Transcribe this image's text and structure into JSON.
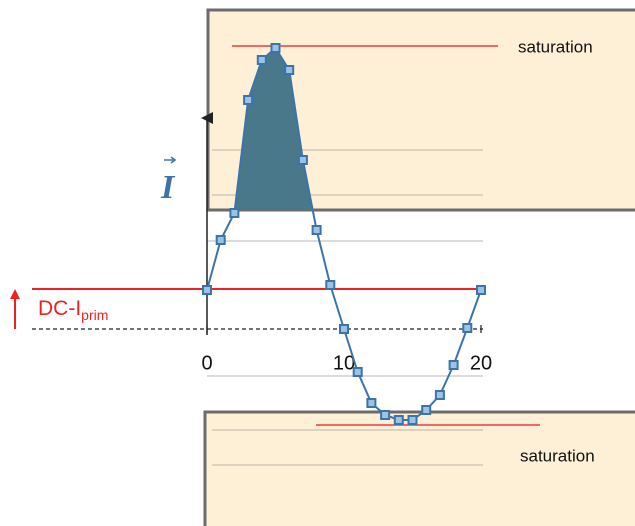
{
  "chart_data": {
    "type": "line",
    "y_label": "I",
    "x": [
      0,
      1,
      2,
      3,
      4,
      5,
      6,
      7,
      8,
      9,
      10,
      11,
      12,
      13,
      14,
      15,
      16,
      17,
      18,
      19,
      20
    ],
    "series": [
      {
        "color": "#3c74a8",
        "fill_color": "#48788a",
        "values": [
          3.9,
          8.9,
          11.6,
          22.9,
          26.9,
          28.1,
          25.9,
          16.9,
          9.9,
          4.4,
          0,
          -4.3,
          -7.4,
          -8.6,
          -9.1,
          -9.1,
          -8.1,
          -6.6,
          -3.6,
          0.1,
          3.9
        ]
      }
    ],
    "xlim": [
      0,
      20
    ],
    "xticks": [
      0,
      10,
      20
    ],
    "ylim": [
      -19.7,
      32.9
    ],
    "dc_level": {
      "label": "DC-I",
      "subscript": "prim",
      "value": 4,
      "color": "#ee2222"
    },
    "saturation_regions": [
      {
        "label": "saturation",
        "edge": 11.9,
        "line": 28.3
      },
      {
        "label": "saturation",
        "edge": -8.3,
        "line": -9.6
      }
    ]
  }
}
